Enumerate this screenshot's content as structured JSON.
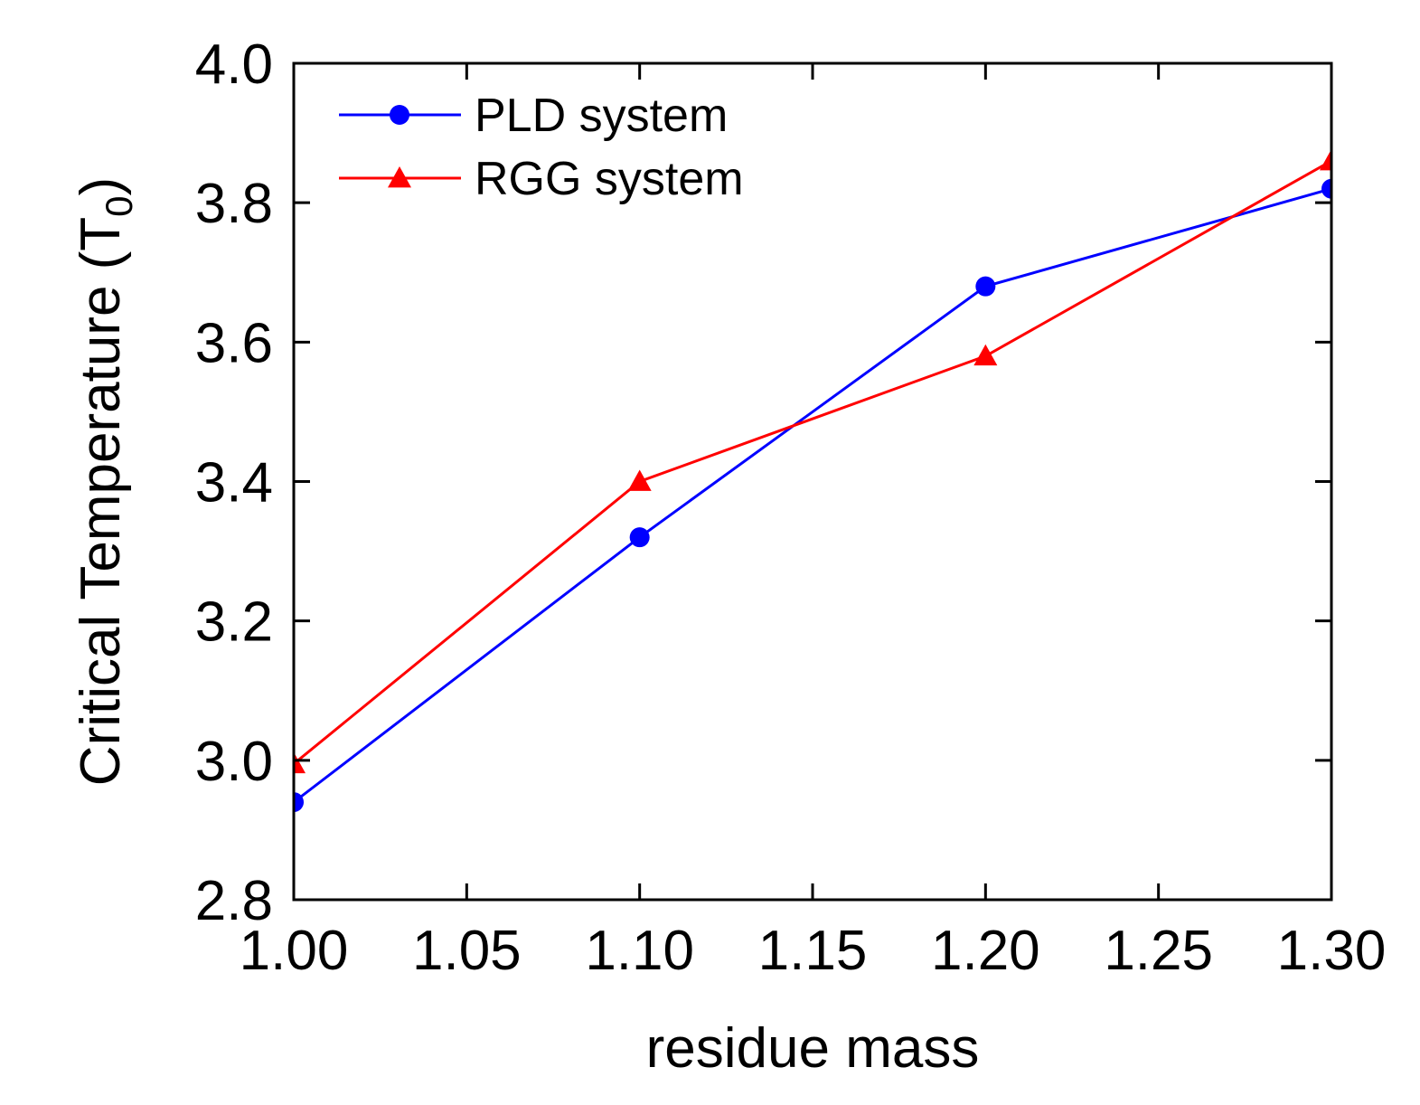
{
  "chart_data": {
    "type": "line",
    "title": "",
    "xlabel": "residue mass",
    "ylabel": "Critical Temperature (T",
    "ylabel_subscript": "0",
    "ylabel_suffix": ")",
    "xlim": [
      1.0,
      1.3
    ],
    "ylim": [
      2.8,
      4.0
    ],
    "xticks": [
      1.0,
      1.05,
      1.1,
      1.15,
      1.2,
      1.25,
      1.3
    ],
    "xtick_labels": [
      "1.00",
      "1.05",
      "1.10",
      "1.15",
      "1.20",
      "1.25",
      "1.30"
    ],
    "yticks": [
      2.8,
      3.0,
      3.2,
      3.4,
      3.6,
      3.8,
      4.0
    ],
    "ytick_labels": [
      "2.8",
      "3.0",
      "3.2",
      "3.4",
      "3.6",
      "3.8",
      "4.0"
    ],
    "grid": false,
    "legend_position": "top-left",
    "series": [
      {
        "name": "PLD system",
        "color": "#0000ff",
        "marker": "circle",
        "x": [
          1.0,
          1.1,
          1.2,
          1.3
        ],
        "y": [
          2.94,
          3.32,
          3.68,
          3.82
        ]
      },
      {
        "name": "RGG system",
        "color": "#ff0000",
        "marker": "triangle",
        "x": [
          1.0,
          1.1,
          1.2,
          1.3
        ],
        "y": [
          2.995,
          3.4,
          3.58,
          3.86
        ]
      }
    ]
  }
}
